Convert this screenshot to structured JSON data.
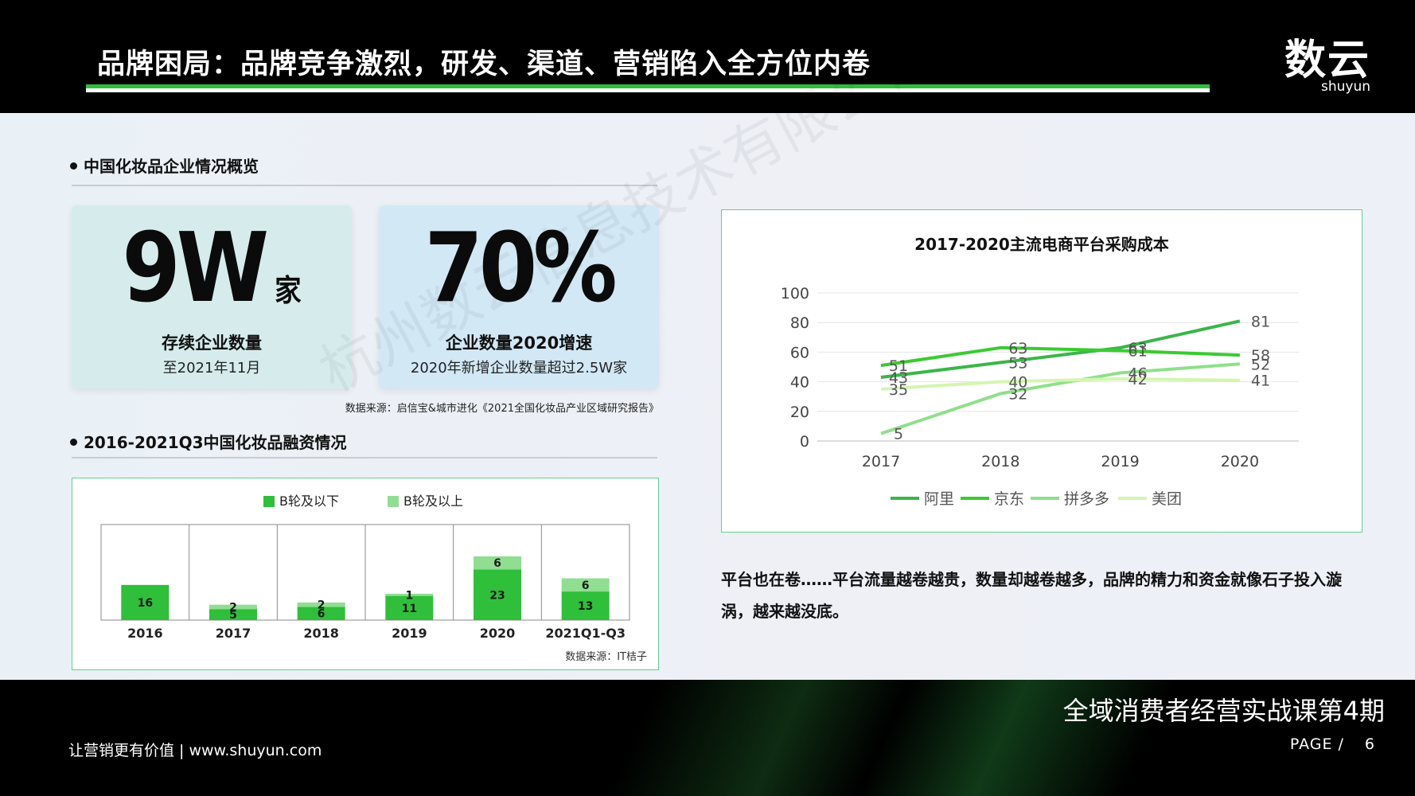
{
  "header": {
    "title": "品牌困局：品牌竞争激烈，研发、渠道、营销陷入全方位内卷",
    "logo": "数云",
    "logo_sub": "shuyun"
  },
  "section1": {
    "heading": "中国化妆品企业情况概览"
  },
  "card1": {
    "big": "9W",
    "unit": "家",
    "label": "存续企业数量",
    "sub": "至2021年11月"
  },
  "card2": {
    "big": "70%",
    "label": "企业数量2020增速",
    "sub": "2020年新增企业数量超过2.5W家"
  },
  "source1": "数据来源：启信宝&城市进化《2021全国化妆品产业区域研究报告》",
  "section2": {
    "heading": "2016-2021Q3中国化妆品融资情况"
  },
  "source2": "数据来源：IT桔子",
  "watermark": "杭州数云信息技术有限公司出品",
  "paragraph": "平台也在卷……平台流量越卷越贵，数量却越卷越多，品牌的精力和资金就像石子投入漩涡，越来越没底。",
  "footer": {
    "slogan": "让营销更有价值 | www.shuyun.com",
    "course": "全域消费者经营实战课第4期",
    "page_label": "PAGE /",
    "page_num": "6"
  },
  "colors": {
    "green": "#2fbf3a",
    "light_green": "#8fde92"
  },
  "chart_data": [
    {
      "type": "bar",
      "stacked": true,
      "title": "",
      "categories": [
        "2016",
        "2017",
        "2018",
        "2019",
        "2020",
        "2021Q1-Q3"
      ],
      "series": [
        {
          "name": "B轮及以下",
          "values": [
            16,
            5,
            6,
            11,
            23,
            13
          ],
          "color": "#2fbf3a"
        },
        {
          "name": "B轮及以上",
          "values": [
            0,
            2,
            2,
            1,
            6,
            6
          ],
          "color": "#8fde92"
        }
      ],
      "legend": "top",
      "ylim": [
        0,
        30
      ],
      "grid": false
    },
    {
      "type": "line",
      "title": "2017-2020主流电商平台采购成本",
      "x": [
        "2017",
        "2018",
        "2019",
        "2020"
      ],
      "series": [
        {
          "name": "阿里",
          "values": [
            43,
            53,
            63,
            81
          ],
          "color": "#3cb54a"
        },
        {
          "name": "京东",
          "values": [
            51,
            63,
            61,
            58
          ],
          "color": "#3acb30"
        },
        {
          "name": "拼多多",
          "values": [
            5,
            32,
            46,
            52
          ],
          "color": "#8ee08a"
        },
        {
          "name": "美团",
          "values": [
            35,
            40,
            42,
            41
          ],
          "color": "#d4f5b0"
        }
      ],
      "ylim": [
        0,
        100
      ],
      "yticks": [
        0,
        20,
        40,
        60,
        80,
        100
      ],
      "grid": true,
      "legend": "bottom"
    }
  ]
}
